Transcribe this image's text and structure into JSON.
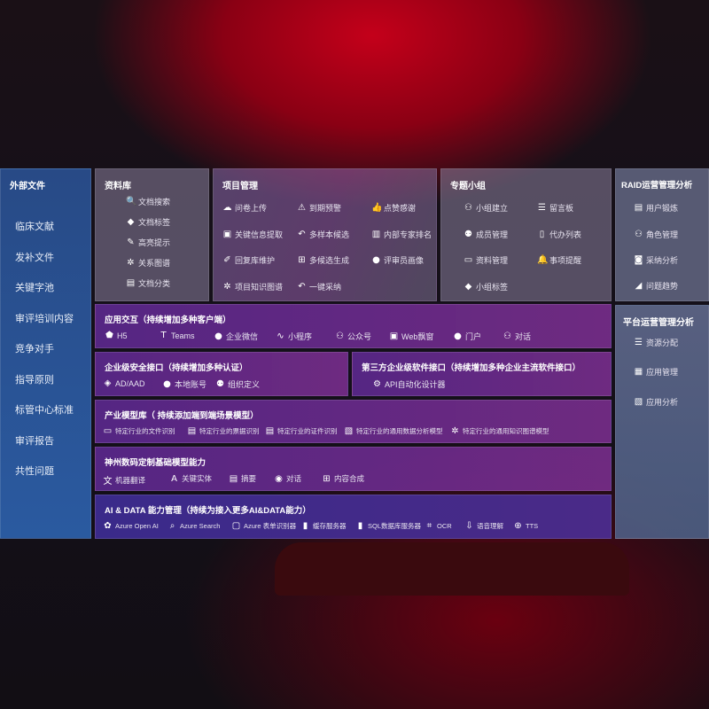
{
  "left": {
    "title": "外部文件",
    "items": [
      "临床文献",
      "发补文件",
      "关键字池",
      "审评培训内容",
      "竞争对手",
      "指导原则",
      "标管中心标准",
      "审评报告",
      "共性问题"
    ]
  },
  "library": {
    "title": "资料库",
    "items": [
      {
        "icon": "doc-search-icon",
        "label": "文档搜索"
      },
      {
        "icon": "tag-icon",
        "label": "文档标签"
      },
      {
        "icon": "pen-icon",
        "label": "高亮提示"
      },
      {
        "icon": "graph-icon",
        "label": "关系图谱"
      },
      {
        "icon": "copy-icon",
        "label": "文档分类"
      }
    ]
  },
  "project": {
    "title": "项目管理",
    "items": [
      {
        "icon": "cloud-upload-icon",
        "label": "问卷上传"
      },
      {
        "icon": "alarm-icon",
        "label": "到期预警"
      },
      {
        "icon": "thumbs-up-icon",
        "label": "点赞感谢"
      },
      {
        "icon": "window-icon",
        "label": "关键信息提取"
      },
      {
        "icon": "reply-icon",
        "label": "多样本候选"
      },
      {
        "icon": "ranking-icon",
        "label": "内部专家排名"
      },
      {
        "icon": "edit-icon",
        "label": "回复库维护"
      },
      {
        "icon": "puzzle-icon",
        "label": "多候选生成"
      },
      {
        "icon": "user-icon",
        "label": "评审员画像"
      },
      {
        "icon": "graph-icon",
        "label": "项目知识图谱"
      },
      {
        "icon": "reply-icon",
        "label": "一键采纳"
      }
    ]
  },
  "group": {
    "title": "专题小组",
    "items": [
      {
        "icon": "users-icon",
        "label": "小组建立"
      },
      {
        "icon": "bbs-icon",
        "label": "留言板"
      },
      {
        "icon": "user-add-icon",
        "label": "成员管理"
      },
      {
        "icon": "clipboard-icon",
        "label": "代办列表"
      },
      {
        "icon": "folder-icon",
        "label": "资料管理"
      },
      {
        "icon": "bell-icon",
        "label": "事项提醒"
      },
      {
        "icon": "tag-icon",
        "label": "小组标签"
      }
    ]
  },
  "raid": {
    "title": "RAID运营管理分析",
    "items": [
      {
        "icon": "id-card-icon",
        "label": "用户锻炼"
      },
      {
        "icon": "users-icon",
        "label": "角色管理"
      },
      {
        "icon": "qa-icon",
        "label": "采纳分析"
      },
      {
        "icon": "trend-icon",
        "label": "问题趋势"
      }
    ]
  },
  "platform": {
    "title": "平台运营管理分析",
    "items": [
      {
        "icon": "list-icon",
        "label": "资源分配"
      },
      {
        "icon": "apps-icon",
        "label": "应用管理"
      },
      {
        "icon": "chart-icon",
        "label": "应用分析"
      }
    ]
  },
  "app": {
    "title": "应用交互（持续增加多种客户端）",
    "items": [
      {
        "icon": "html5-icon",
        "label": "H5"
      },
      {
        "icon": "teams-icon",
        "label": "Teams"
      },
      {
        "icon": "wechat-icon",
        "label": "企业微信"
      },
      {
        "icon": "miniprogram-icon",
        "label": "小程序"
      },
      {
        "icon": "public-account-icon",
        "label": "公众号"
      },
      {
        "icon": "window-icon",
        "label": "Web飘窗"
      },
      {
        "icon": "portal-icon",
        "label": "门户"
      },
      {
        "icon": "dialog-icon",
        "label": "对话"
      }
    ]
  },
  "security": {
    "title": "企业级安全接口（持续增加多种认证）",
    "items": [
      {
        "icon": "ad-icon",
        "label": "AD/AAD"
      },
      {
        "icon": "account-icon",
        "label": "本地账号"
      },
      {
        "icon": "org-icon",
        "label": "组织定义"
      }
    ]
  },
  "third": {
    "title": "第三方企业级软件接口（持续增加多种企业主流软件接口）",
    "items": [
      {
        "icon": "gear-icon",
        "label": "API自动化设计器"
      }
    ]
  },
  "industry": {
    "title": "产业模型库（ 持续添加端到端场景模型）",
    "items": [
      {
        "icon": "file-icon",
        "label": "特定行业的文件识别"
      },
      {
        "icon": "receipt-icon",
        "label": "特定行业的票据识别"
      },
      {
        "icon": "id-card-icon",
        "label": "特定行业的证件识别"
      },
      {
        "icon": "chart-icon",
        "label": "特定行业的通用数据分析模型"
      },
      {
        "icon": "graph-icon",
        "label": "特定行业的通用知识图谱模型"
      }
    ]
  },
  "base": {
    "title": "神州数码定制基础模型能力",
    "items": [
      {
        "icon": "translate-icon",
        "label": "机器翻译"
      },
      {
        "icon": "entity-icon",
        "label": "关键实体"
      },
      {
        "icon": "summary-icon",
        "label": "摘要"
      },
      {
        "icon": "chat-icon",
        "label": "对话"
      },
      {
        "icon": "compose-icon",
        "label": "内容合成"
      }
    ]
  },
  "ai": {
    "title": "AI & DATA 能力管理（持续为接入更多AI&DATA能力）",
    "items": [
      {
        "icon": "openai-icon",
        "label": "Azure Open AI"
      },
      {
        "icon": "search-icon",
        "label": "Azure Search"
      },
      {
        "icon": "form-icon",
        "label": "Azure 表单识别器"
      },
      {
        "icon": "cache-icon",
        "label": "缓存服务器"
      },
      {
        "icon": "sql-icon",
        "label": "SQL数据库服务器"
      },
      {
        "icon": "ocr-icon",
        "label": "OCR"
      },
      {
        "icon": "voice-icon",
        "label": "语音理解"
      },
      {
        "icon": "tts-icon",
        "label": "TTS"
      }
    ]
  }
}
